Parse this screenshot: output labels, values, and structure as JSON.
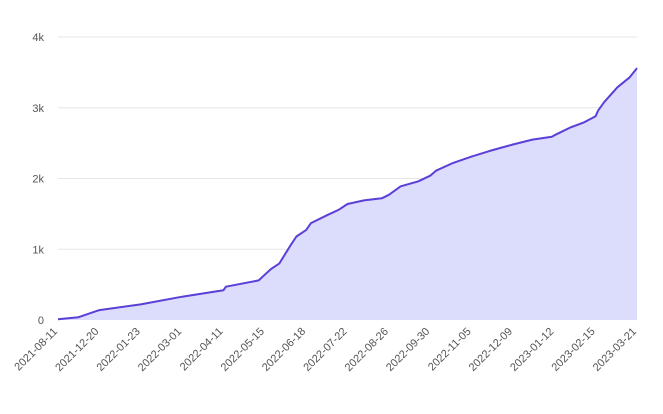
{
  "chart_data": {
    "type": "area",
    "title": "",
    "xlabel": "",
    "ylabel": "",
    "ylim": [
      0,
      4000
    ],
    "yticks": [
      0,
      1000,
      2000,
      3000,
      4000
    ],
    "ytick_labels": [
      "0",
      "1k",
      "2k",
      "3k",
      "4k"
    ],
    "xtick_labels": [
      "2021-08-11",
      "2021-12-20",
      "2022-01-23",
      "2022-03-01",
      "2022-04-11",
      "2022-05-15",
      "2022-06-18",
      "2022-07-22",
      "2022-08-26",
      "2022-09-30",
      "2022-11-05",
      "2022-12-09",
      "2023-01-12",
      "2023-02-15",
      "2023-03-21"
    ],
    "grid": true,
    "colors": {
      "line": "#5b3fd6",
      "fill": "#dcdcfc",
      "grid": "#e6e6e6"
    },
    "series": [
      {
        "x": [
          "2021-08-11",
          "2021-10-15",
          "2021-12-20",
          "2022-01-23",
          "2022-03-01",
          "2022-04-11",
          "2022-04-13",
          "2022-05-10",
          "2022-05-15",
          "2022-05-20",
          "2022-05-27",
          "2022-06-05",
          "2022-06-10",
          "2022-06-18",
          "2022-06-22",
          "2022-07-05",
          "2022-07-15",
          "2022-07-22",
          "2022-08-05",
          "2022-08-20",
          "2022-08-26",
          "2022-09-05",
          "2022-09-20",
          "2022-09-30",
          "2022-10-05",
          "2022-10-20",
          "2022-11-05",
          "2022-11-20",
          "2022-12-09",
          "2022-12-25",
          "2023-01-10",
          "2023-01-12",
          "2023-01-25",
          "2023-02-05",
          "2023-02-15",
          "2023-02-17",
          "2023-02-22",
          "2023-03-05",
          "2023-03-15",
          "2023-03-21"
        ],
        "y": [
          10,
          40,
          140,
          220,
          330,
          420,
          470,
          560,
          640,
          720,
          800,
          1050,
          1180,
          1270,
          1370,
          1480,
          1560,
          1640,
          1690,
          1720,
          1770,
          1890,
          1960,
          2040,
          2110,
          2220,
          2310,
          2390,
          2480,
          2550,
          2590,
          2610,
          2720,
          2790,
          2880,
          2960,
          3080,
          3290,
          3430,
          3560
        ]
      }
    ]
  }
}
